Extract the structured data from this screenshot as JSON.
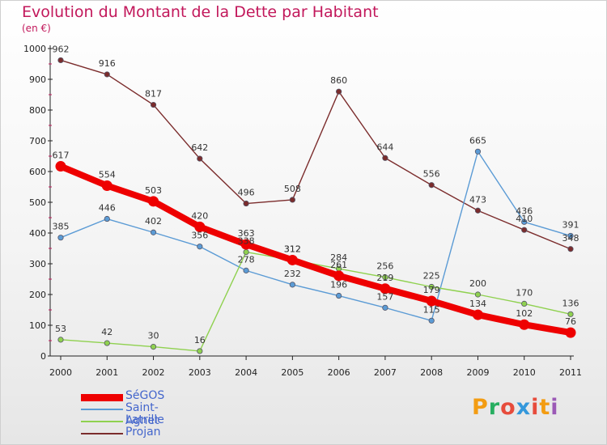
{
  "title": "Evolution du Montant de la Dette par Habitant",
  "subtitle": "(en €)",
  "logo": {
    "text": "Proxiti",
    "letter_colors": [
      "#f39c12",
      "#27ae60",
      "#e74c3c",
      "#3498db",
      "#e74c3c",
      "#f39c12",
      "#9b59b6"
    ]
  },
  "chart_data": {
    "type": "line",
    "x": [
      "2000",
      "2001",
      "2002",
      "2003",
      "2004",
      "2005",
      "2006",
      "2007",
      "2008",
      "2009",
      "2010",
      "2011"
    ],
    "ylim": [
      0,
      1000
    ],
    "yticks": [
      "0",
      "100",
      "200",
      "300",
      "400",
      "500",
      "600",
      "700",
      "800",
      "900",
      "1000"
    ],
    "grid": false,
    "legend_position": "bottom-left",
    "series": [
      {
        "name": "SéGOS",
        "color": "#ee0000",
        "values": [
          617,
          554,
          503,
          420,
          363,
          312,
          261,
          219,
          179,
          134,
          102,
          76
        ],
        "labels": [
          "617",
          "554",
          "503",
          "420",
          "363",
          "312",
          "261",
          "219",
          "179",
          "134",
          "102",
          "76"
        ]
      },
      {
        "name": "Saint-Agnet",
        "color": "#5b9bd5",
        "values": [
          385,
          446,
          402,
          356,
          278,
          232,
          196,
          157,
          115,
          665,
          436,
          391
        ],
        "labels": [
          "385",
          "446",
          "402",
          "356",
          "278",
          "232",
          "196",
          "157",
          "115",
          "665",
          "436",
          "391"
        ]
      },
      {
        "name": "Latrille",
        "color": "#8fd14f",
        "values": [
          53,
          42,
          30,
          16,
          338,
          312,
          284,
          256,
          225,
          200,
          170,
          136
        ],
        "labels": [
          "53",
          "42",
          "30",
          "16",
          "338",
          "312",
          "284",
          "256",
          "225",
          "200",
          "170",
          "136"
        ]
      },
      {
        "name": "Projan",
        "color": "#7b2c2c",
        "values": [
          962,
          916,
          817,
          642,
          496,
          508,
          860,
          644,
          556,
          473,
          410,
          348
        ],
        "labels": [
          "962",
          "916",
          "817",
          "642",
          "496",
          "508",
          "860",
          "644",
          "556",
          "473",
          "410",
          "348"
        ]
      }
    ]
  }
}
